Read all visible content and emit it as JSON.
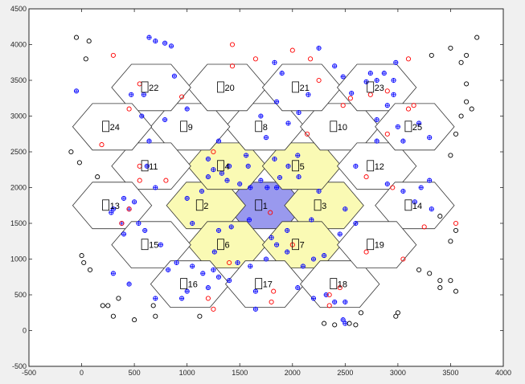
{
  "chart_data": {
    "type": "scatter",
    "title": "",
    "xlabel": "",
    "ylabel": "",
    "xlim": [
      -500,
      4000
    ],
    "ylim": [
      -500,
      4500
    ],
    "xticks": [
      "-500",
      "0",
      "500",
      "1000",
      "1500",
      "2000",
      "2500",
      "3000",
      "3500",
      "4000"
    ],
    "yticks": [
      "-500",
      "0",
      "500",
      "1000",
      "1500",
      "2000",
      "2500",
      "3000",
      "3500",
      "4000",
      "4500"
    ],
    "grid": false,
    "hex_radius": 375,
    "colors": {
      "figure_bg": "#f0f0f0",
      "axes_bg": "#ffffff",
      "center_cell": "#9999ee",
      "first_ring": "#fafab4",
      "other_cells": "#ffffff",
      "edge": "#333333",
      "blue_marker": "#0000ff",
      "red_marker": "#ff0000",
      "black_marker": "#000000"
    },
    "cells": [
      {
        "label": "1",
        "x": 1740,
        "y": 1750,
        "fill": "center"
      },
      {
        "label": "2",
        "x": 1180,
        "y": 1750,
        "fill": "ring"
      },
      {
        "label": "3",
        "x": 2300,
        "y": 1750,
        "fill": "ring"
      },
      {
        "label": "4",
        "x": 1380,
        "y": 2300,
        "fill": "ring"
      },
      {
        "label": "5",
        "x": 2090,
        "y": 2300,
        "fill": "ring"
      },
      {
        "label": "6",
        "x": 1380,
        "y": 1200,
        "fill": "ring"
      },
      {
        "label": "7",
        "x": 2090,
        "y": 1200,
        "fill": "ring"
      },
      {
        "label": "8",
        "x": 1740,
        "y": 2850,
        "fill": "none"
      },
      {
        "label": "9",
        "x": 1030,
        "y": 2850,
        "fill": "none"
      },
      {
        "label": "10",
        "x": 2450,
        "y": 2850,
        "fill": "none"
      },
      {
        "label": "11",
        "x": 660,
        "y": 2300,
        "fill": "none"
      },
      {
        "label": "12",
        "x": 2800,
        "y": 2300,
        "fill": "none"
      },
      {
        "label": "13",
        "x": 290,
        "y": 1750,
        "fill": "none"
      },
      {
        "label": "14",
        "x": 3160,
        "y": 1750,
        "fill": "none"
      },
      {
        "label": "15",
        "x": 660,
        "y": 1200,
        "fill": "none"
      },
      {
        "label": "16",
        "x": 1030,
        "y": 650,
        "fill": "none"
      },
      {
        "label": "17",
        "x": 1740,
        "y": 650,
        "fill": "none"
      },
      {
        "label": "18",
        "x": 2450,
        "y": 650,
        "fill": "none"
      },
      {
        "label": "19",
        "x": 2800,
        "y": 1200,
        "fill": "none"
      },
      {
        "label": "20",
        "x": 1380,
        "y": 3400,
        "fill": "none"
      },
      {
        "label": "21",
        "x": 2090,
        "y": 3400,
        "fill": "none"
      },
      {
        "label": "22",
        "x": 660,
        "y": 3400,
        "fill": "none"
      },
      {
        "label": "23",
        "x": 2800,
        "y": 3400,
        "fill": "none"
      },
      {
        "label": "24",
        "x": 290,
        "y": 2850,
        "fill": "none"
      },
      {
        "label": "25",
        "x": 3160,
        "y": 2850,
        "fill": "none"
      }
    ],
    "series": [
      {
        "marker": "blue circle with plus",
        "color": "#0000ff",
        "points": [
          [
            -50,
            3350
          ],
          [
            470,
            3300
          ],
          [
            640,
            4100
          ],
          [
            700,
            4050
          ],
          [
            790,
            4020
          ],
          [
            850,
            3980
          ],
          [
            880,
            3560
          ],
          [
            590,
            3300
          ],
          [
            640,
            2650
          ],
          [
            620,
            2300
          ],
          [
            700,
            2000
          ],
          [
            1000,
            3100
          ],
          [
            790,
            2950
          ],
          [
            570,
            3000
          ],
          [
            1300,
            2650
          ],
          [
            1200,
            2400
          ],
          [
            1250,
            2250
          ],
          [
            1380,
            2100
          ],
          [
            1330,
            2200
          ],
          [
            1400,
            2300
          ],
          [
            1560,
            2450
          ],
          [
            1580,
            2300
          ],
          [
            1500,
            2050
          ],
          [
            1600,
            2000
          ],
          [
            1700,
            2100
          ],
          [
            1760,
            2000
          ],
          [
            1850,
            2000
          ],
          [
            1880,
            2140
          ],
          [
            1960,
            2300
          ],
          [
            2050,
            2450
          ],
          [
            2060,
            2150
          ],
          [
            1830,
            2400
          ],
          [
            1750,
            2700
          ],
          [
            1700,
            3000
          ],
          [
            1960,
            2900
          ],
          [
            2060,
            3050
          ],
          [
            2150,
            3300
          ],
          [
            1850,
            3200
          ],
          [
            1900,
            3600
          ],
          [
            1830,
            3750
          ],
          [
            2250,
            3950
          ],
          [
            2400,
            3700
          ],
          [
            2480,
            3550
          ],
          [
            2560,
            3320
          ],
          [
            2700,
            3480
          ],
          [
            2740,
            3600
          ],
          [
            2800,
            3500
          ],
          [
            2870,
            3600
          ],
          [
            2980,
            3750
          ],
          [
            2960,
            3500
          ],
          [
            2960,
            3300
          ],
          [
            2900,
            3150
          ],
          [
            2800,
            2950
          ],
          [
            3000,
            2850
          ],
          [
            3200,
            2900
          ],
          [
            3050,
            2650
          ],
          [
            3300,
            2700
          ],
          [
            2800,
            2650
          ],
          [
            2600,
            2300
          ],
          [
            2900,
            2050
          ],
          [
            3050,
            1950
          ],
          [
            3220,
            2000
          ],
          [
            3300,
            2100
          ],
          [
            3320,
            1700
          ],
          [
            3160,
            1800
          ],
          [
            2500,
            1700
          ],
          [
            2250,
            1950
          ],
          [
            2180,
            1550
          ],
          [
            2600,
            1500
          ],
          [
            2450,
            1350
          ],
          [
            2300,
            1050
          ],
          [
            2200,
            1000
          ],
          [
            2100,
            900
          ],
          [
            1950,
            1100
          ],
          [
            1850,
            1200
          ],
          [
            1800,
            1300
          ],
          [
            1750,
            1000
          ],
          [
            1600,
            900
          ],
          [
            1480,
            950
          ],
          [
            1260,
            1100
          ],
          [
            1250,
            850
          ],
          [
            1150,
            800
          ],
          [
            1050,
            900
          ],
          [
            900,
            950
          ],
          [
            820,
            850
          ],
          [
            750,
            1200
          ],
          [
            600,
            1400
          ],
          [
            540,
            1500
          ],
          [
            400,
            1350
          ],
          [
            380,
            1500
          ],
          [
            280,
            1650
          ],
          [
            300,
            1700
          ],
          [
            450,
            1700
          ],
          [
            400,
            1850
          ],
          [
            1000,
            1850
          ],
          [
            1050,
            1500
          ],
          [
            1140,
            1950
          ],
          [
            1300,
            1400
          ],
          [
            1400,
            700
          ],
          [
            1300,
            750
          ],
          [
            1200,
            600
          ],
          [
            1000,
            550
          ],
          [
            950,
            450
          ],
          [
            700,
            450
          ],
          [
            450,
            650
          ],
          [
            300,
            800
          ],
          [
            1650,
            300
          ],
          [
            1650,
            550
          ],
          [
            2050,
            600
          ],
          [
            2320,
            500
          ],
          [
            2200,
            450
          ],
          [
            2400,
            400
          ],
          [
            2500,
            400
          ],
          [
            2480,
            150
          ],
          [
            2500,
            100
          ],
          [
            1950,
            1400
          ],
          [
            1420,
            1450
          ],
          [
            1590,
            1550
          ],
          [
            1200,
            2150
          ],
          [
            500,
            1800
          ]
        ]
      },
      {
        "marker": "red circle",
        "color": "#ff0000",
        "points": [
          [
            300,
            3850
          ],
          [
            550,
            3450
          ],
          [
            950,
            3270
          ],
          [
            1430,
            4000
          ],
          [
            1650,
            3800
          ],
          [
            2000,
            3920
          ],
          [
            2170,
            3800
          ],
          [
            2250,
            3500
          ],
          [
            2550,
            3250
          ],
          [
            2480,
            3150
          ],
          [
            2740,
            3300
          ],
          [
            3100,
            3800
          ],
          [
            3150,
            3150
          ],
          [
            3100,
            3100
          ],
          [
            2900,
            2750
          ],
          [
            2700,
            2150
          ],
          [
            2950,
            2000
          ],
          [
            3550,
            1500
          ],
          [
            3250,
            1450
          ],
          [
            3050,
            1000
          ],
          [
            2700,
            1100
          ],
          [
            2450,
            600
          ],
          [
            2350,
            500
          ],
          [
            2350,
            350
          ],
          [
            2000,
            1200
          ],
          [
            1820,
            550
          ],
          [
            1800,
            400
          ],
          [
            1400,
            950
          ],
          [
            1200,
            450
          ],
          [
            1250,
            300
          ],
          [
            450,
            1700
          ],
          [
            380,
            1500
          ],
          [
            550,
            2100
          ],
          [
            550,
            2300
          ],
          [
            800,
            2100
          ],
          [
            190,
            2600
          ],
          [
            450,
            3100
          ],
          [
            1790,
            1650
          ],
          [
            1250,
            2500
          ],
          [
            2140,
            2750
          ],
          [
            1430,
            3700
          ],
          [
            2900,
            3350
          ]
        ]
      },
      {
        "marker": "black open circle",
        "color": "#000000",
        "points": [
          [
            -50,
            4100
          ],
          [
            70,
            4050
          ],
          [
            40,
            3800
          ],
          [
            -100,
            2500
          ],
          [
            -20,
            2350
          ],
          [
            150,
            2150
          ],
          [
            0,
            1050
          ],
          [
            20,
            950
          ],
          [
            80,
            850
          ],
          [
            200,
            350
          ],
          [
            250,
            350
          ],
          [
            350,
            450
          ],
          [
            300,
            200
          ],
          [
            500,
            150
          ],
          [
            680,
            350
          ],
          [
            700,
            200
          ],
          [
            1120,
            200
          ],
          [
            2300,
            100
          ],
          [
            2400,
            80
          ],
          [
            2540,
            100
          ],
          [
            2600,
            80
          ],
          [
            3000,
            250
          ],
          [
            2980,
            200
          ],
          [
            2650,
            250
          ],
          [
            3400,
            600
          ],
          [
            3400,
            700
          ],
          [
            3500,
            700
          ],
          [
            3550,
            550
          ],
          [
            3300,
            800
          ],
          [
            3200,
            850
          ],
          [
            3500,
            1250
          ],
          [
            3550,
            1400
          ],
          [
            3400,
            1600
          ],
          [
            3500,
            2450
          ],
          [
            3550,
            2750
          ],
          [
            3600,
            3000
          ],
          [
            3650,
            3200
          ],
          [
            3700,
            3100
          ],
          [
            3650,
            3450
          ],
          [
            3600,
            3750
          ],
          [
            3650,
            3850
          ],
          [
            3750,
            4100
          ],
          [
            3500,
            3950
          ],
          [
            3320,
            3850
          ]
        ]
      }
    ]
  }
}
